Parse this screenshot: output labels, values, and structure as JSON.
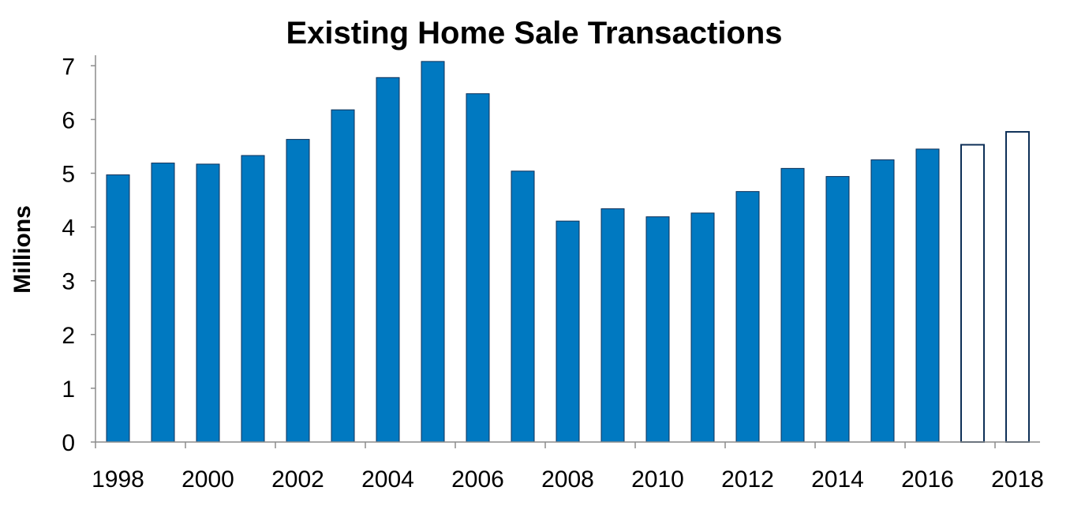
{
  "chart_data": {
    "type": "bar",
    "title": "Existing Home Sale Transactions",
    "xlabel": "",
    "ylabel": "Millions",
    "ylim": [
      0,
      7.1
    ],
    "yticks": [
      0,
      1,
      2,
      3,
      4,
      5,
      6,
      7
    ],
    "grid": false,
    "legend": "none",
    "categories": [
      "1998",
      "1999",
      "2000",
      "2001",
      "2002",
      "2003",
      "2004",
      "2005",
      "2006",
      "2007",
      "2008",
      "2009",
      "2010",
      "2011",
      "2012",
      "2013",
      "2014",
      "2015",
      "2016",
      "2017",
      "2018"
    ],
    "x_tick_labels": [
      "1998",
      "2000",
      "2002",
      "2004",
      "2006",
      "2008",
      "2010",
      "2012",
      "2014",
      "2016",
      "2018"
    ],
    "values": [
      4.97,
      5.19,
      5.17,
      5.33,
      5.63,
      6.18,
      6.78,
      7.08,
      6.48,
      5.04,
      4.11,
      4.34,
      4.19,
      4.26,
      4.66,
      5.09,
      4.94,
      5.25,
      5.45,
      5.53,
      5.77
    ],
    "projected": [
      false,
      false,
      false,
      false,
      false,
      false,
      false,
      false,
      false,
      false,
      false,
      false,
      false,
      false,
      false,
      false,
      false,
      false,
      false,
      true,
      true
    ],
    "colors": {
      "bar_fill": "#0079c1",
      "bar_edge": "#0d2f57",
      "projected_fill": "#ffffff",
      "axis": "#8c8c8c"
    }
  }
}
